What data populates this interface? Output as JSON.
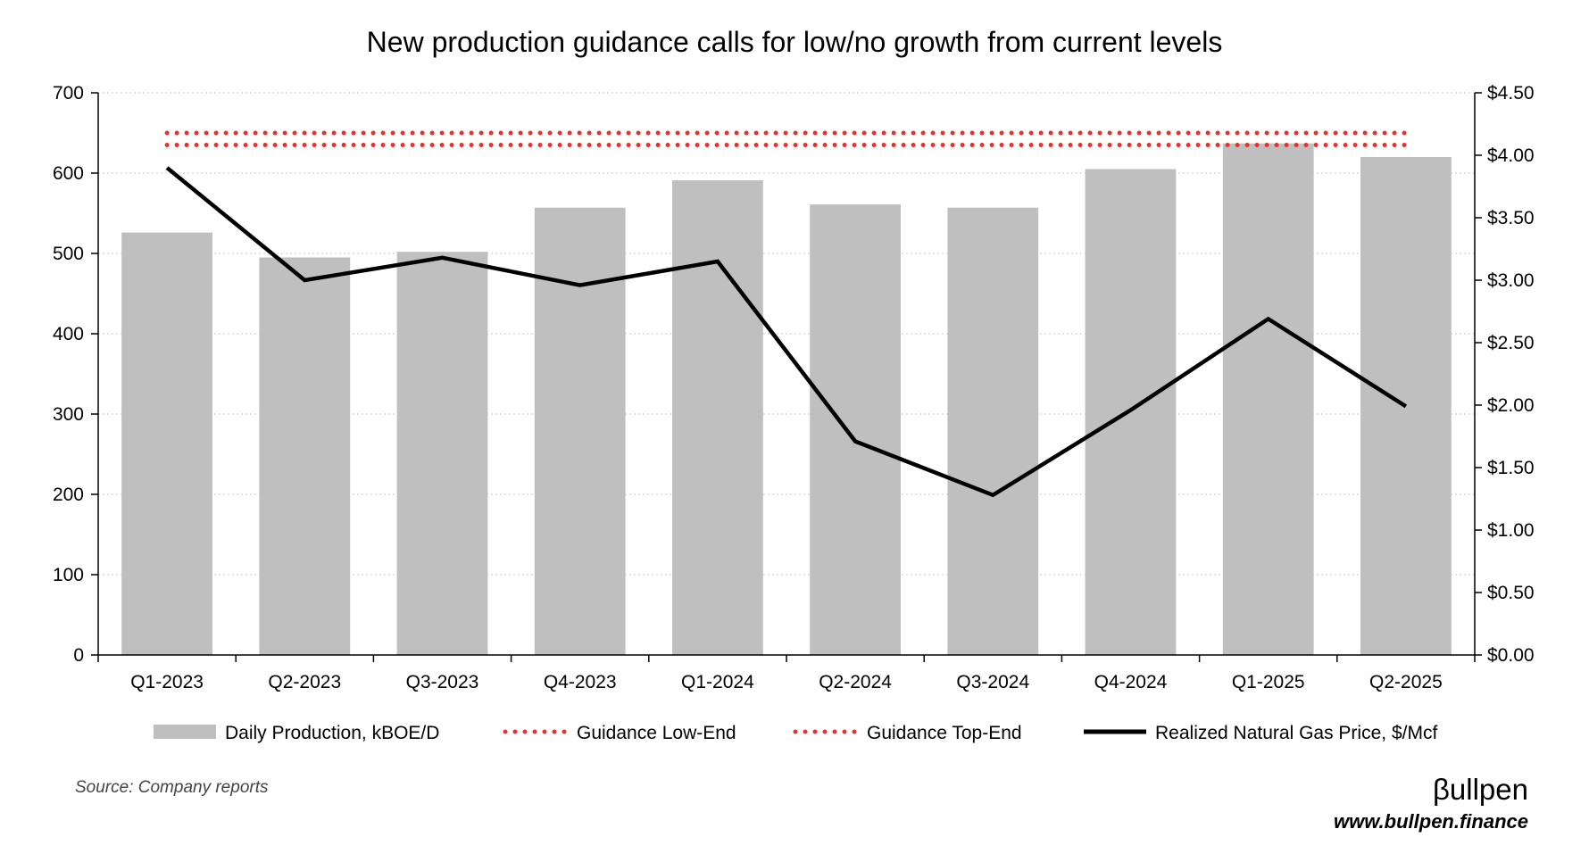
{
  "chart_data": {
    "type": "bar",
    "title": "New production guidance calls for low/no growth from current levels",
    "categories": [
      "Q1-2023",
      "Q2-2023",
      "Q3-2023",
      "Q4-2023",
      "Q1-2024",
      "Q2-2024",
      "Q3-2024",
      "Q4-2024",
      "Q1-2025",
      "Q2-2025"
    ],
    "y_left": {
      "min": 0,
      "max": 700,
      "step": 100,
      "ticks": [
        "0",
        "100",
        "200",
        "300",
        "400",
        "500",
        "600",
        "700"
      ]
    },
    "y_right": {
      "min": 0,
      "max": 4.5,
      "step": 0.5,
      "ticks": [
        "$0.00",
        "$0.50",
        "$1.00",
        "$1.50",
        "$2.00",
        "$2.50",
        "$3.00",
        "$3.50",
        "$4.00",
        "$4.50"
      ]
    },
    "grid": "horizontal-dotted",
    "legend_position": "bottom",
    "series": [
      {
        "name": "Daily Production, kBOE/D",
        "kind": "bar",
        "axis": "left",
        "color": "#bfbfbf",
        "values": [
          526,
          495,
          502,
          557,
          591,
          561,
          557,
          605,
          637,
          620
        ]
      },
      {
        "name": "Guidance Low-End",
        "kind": "dotted-line",
        "axis": "left",
        "color": "#e8312a",
        "constant": 635
      },
      {
        "name": "Guidance Top-End",
        "kind": "dotted-line",
        "axis": "left",
        "color": "#e8312a",
        "constant": 650
      },
      {
        "name": "Realized Natural Gas Price, $/Mcf",
        "kind": "line",
        "axis": "right",
        "color": "#000000",
        "values": [
          3.9,
          3.0,
          3.18,
          2.96,
          3.15,
          1.71,
          1.28,
          1.96,
          2.69,
          1.99
        ]
      }
    ]
  },
  "source": "Source: Company reports",
  "brand": {
    "name": "βullpen",
    "url": "www.bullpen.finance"
  }
}
